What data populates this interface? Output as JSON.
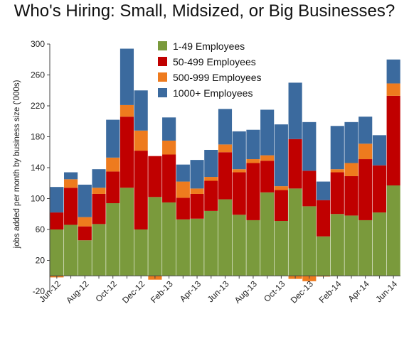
{
  "chart_data": {
    "type": "bar",
    "stacked": true,
    "title": "Who's Hiring: Small, Midsized, or Big Businesses?",
    "ylabel": "jobs added per month by business size ('000s)",
    "xlabel": "",
    "ylim": [
      -20,
      300
    ],
    "yticks": [
      -20,
      20,
      60,
      100,
      140,
      180,
      220,
      260,
      300
    ],
    "grid": false,
    "legend_position": "top-center",
    "categories": [
      "Jun-12",
      "Jul-12",
      "Aug-12",
      "Sep-12",
      "Oct-12",
      "Nov-12",
      "Dec-12",
      "Jan-13",
      "Feb-13",
      "Mar-13",
      "Apr-13",
      "May-13",
      "Jun-13",
      "Jul-13",
      "Aug-13",
      "Sep-13",
      "Oct-13",
      "Nov-13",
      "Dec-13",
      "Jan-14",
      "Feb-14",
      "Mar-14",
      "Apr-14",
      "May-14",
      "Jun-14"
    ],
    "xtick_labels": [
      "Jun-12",
      "",
      "Aug-12",
      "",
      "Oct-12",
      "",
      "Dec-12",
      "",
      "Feb-13",
      "",
      "Apr-13",
      "",
      "Jun-13",
      "",
      "Aug-13",
      "",
      "Oct-13",
      "",
      "Dec-13",
      "",
      "Feb-14",
      "",
      "Apr-14",
      "",
      "Jun-14"
    ],
    "series": [
      {
        "name": "1-49 Employees",
        "color": "#7a9a3c",
        "values": [
          60,
          66,
          46,
          67,
          94,
          114,
          60,
          102,
          95,
          73,
          74,
          84,
          99,
          79,
          72,
          108,
          71,
          113,
          90,
          51,
          80,
          78,
          72,
          82,
          117
        ]
      },
      {
        "name": "50-499 Employees",
        "color": "#c00000",
        "values": [
          22,
          48,
          18,
          39,
          41,
          92,
          102,
          53,
          62,
          28,
          32,
          39,
          61,
          55,
          74,
          41,
          40,
          64,
          46,
          47,
          54,
          51,
          79,
          61,
          116
        ]
      },
      {
        "name": "500-999 Employees",
        "color": "#ee7b1e",
        "values": [
          -2,
          11,
          12,
          8,
          18,
          15,
          26,
          -5,
          18,
          21,
          7,
          5,
          10,
          4,
          5,
          7,
          5,
          -4,
          -7,
          -1,
          4,
          17,
          20,
          0,
          16
        ]
      },
      {
        "name": "1000+ Employees",
        "color": "#3b6a9e",
        "values": [
          33,
          9,
          42,
          24,
          49,
          73,
          52,
          0,
          30,
          22,
          37,
          35,
          46,
          49,
          38,
          59,
          80,
          73,
          63,
          24,
          56,
          53,
          35,
          39,
          31
        ]
      }
    ]
  }
}
